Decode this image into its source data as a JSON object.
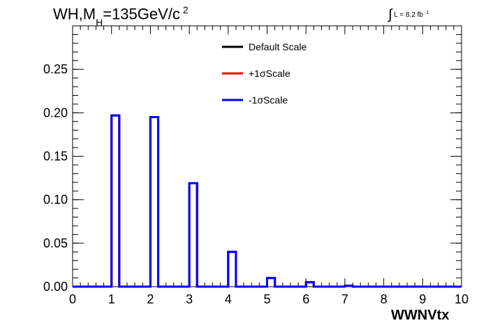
{
  "chart_data": {
    "type": "line",
    "title_parts": {
      "main": "WH,M",
      "sub": "H",
      "rest": "=135GeV/c",
      "sup": "2"
    },
    "luminosity": {
      "symbol": "∫",
      "text": "L = 8.2 fb",
      "sup": "-1"
    },
    "xlabel": "WWNVtx",
    "xlim": [
      0,
      10
    ],
    "ylim": [
      0,
      0.3
    ],
    "x_ticks": [
      "0",
      "1",
      "2",
      "3",
      "4",
      "5",
      "6",
      "7",
      "8",
      "9",
      "10"
    ],
    "y_ticks": [
      "0.00",
      "0.05",
      "0.10",
      "0.15",
      "0.20",
      "0.25"
    ],
    "legend_placement": "top-center",
    "bin_edges": [
      0,
      1,
      1.2,
      2,
      2.2,
      3,
      3.2,
      4,
      4.2,
      5,
      5.2,
      6,
      6.2,
      7,
      7.2,
      10
    ],
    "series": [
      {
        "name": "Default Scale",
        "color": "#000000",
        "values": [
          0,
          0.197,
          0,
          0.195,
          0,
          0.119,
          0,
          0.04,
          0,
          0.01,
          0,
          0.005,
          0,
          0.001,
          0
        ]
      },
      {
        "name": "+1σScale",
        "color": "#ff0000",
        "values": [
          0,
          0.197,
          0,
          0.195,
          0,
          0.119,
          0,
          0.04,
          0,
          0.01,
          0,
          0.005,
          0,
          0.001,
          0
        ]
      },
      {
        "name": "-1σScale",
        "color": "#0000ff",
        "values": [
          0,
          0.197,
          0,
          0.195,
          0,
          0.119,
          0,
          0.04,
          0,
          0.01,
          0,
          0.005,
          0,
          0.001,
          0
        ]
      }
    ]
  }
}
